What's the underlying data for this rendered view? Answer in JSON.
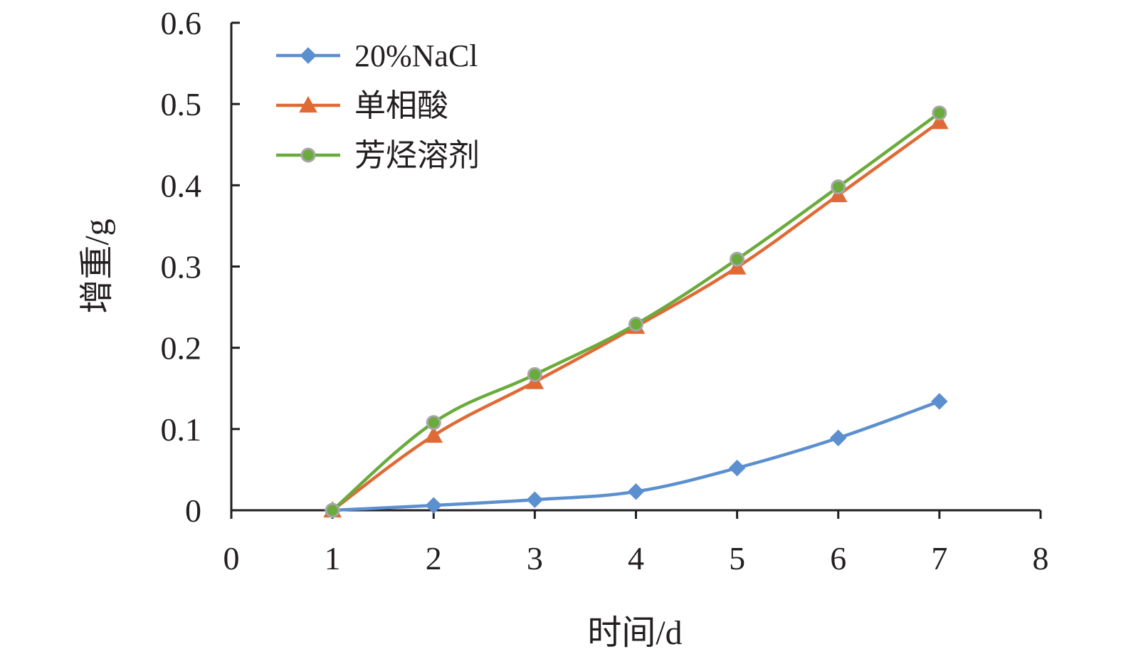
{
  "chart_data": {
    "type": "line",
    "title": "",
    "xlabel": "时间/d",
    "ylabel": "增重/g",
    "xlim": [
      0,
      8
    ],
    "ylim": [
      0,
      0.6
    ],
    "xticks": [
      0,
      1,
      2,
      3,
      4,
      5,
      6,
      7,
      8
    ],
    "yticks": [
      0,
      0.1,
      0.2,
      0.3,
      0.4,
      0.5,
      0.6
    ],
    "ytick_labels": [
      "0",
      "0.1",
      "0.2",
      "0.3",
      "0.4",
      "0.5",
      "0.6"
    ],
    "xtick_labels": [
      "0",
      "1",
      "2",
      "3",
      "4",
      "5",
      "6",
      "7",
      "8"
    ],
    "grid": false,
    "legend_position": "top-left",
    "x": [
      1,
      2,
      3,
      4,
      5,
      6,
      7
    ],
    "series": [
      {
        "name": "20%NaCl",
        "color": "#5b8fd0",
        "marker": "diamond",
        "values": [
          0,
          0.006,
          0.013,
          0.023,
          0.052,
          0.089,
          0.134
        ]
      },
      {
        "name": "单相酸",
        "color": "#e06a35",
        "marker": "triangle",
        "values": [
          0,
          0.092,
          0.158,
          0.226,
          0.299,
          0.388,
          0.478
        ]
      },
      {
        "name": "芳烃溶剂",
        "color": "#6aab3c",
        "marker": "circle",
        "values": [
          0,
          0.108,
          0.167,
          0.229,
          0.309,
          0.398,
          0.489
        ]
      }
    ]
  }
}
